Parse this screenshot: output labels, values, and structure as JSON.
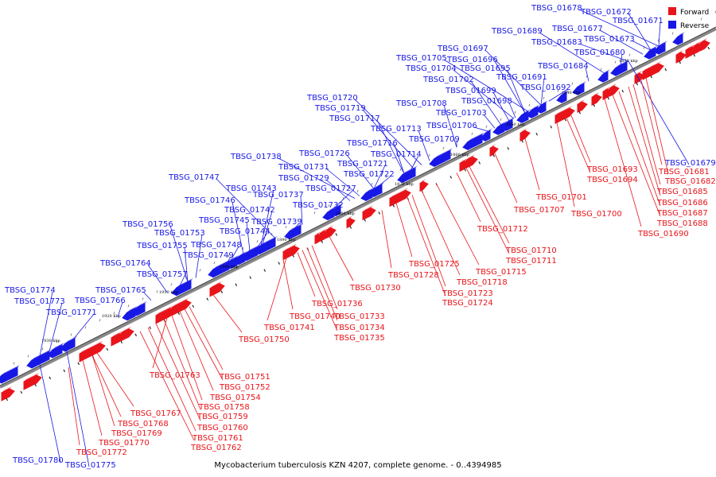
{
  "caption": "Mycobacterium tuberculosis KZN 4207, complete genome. - 0..4394985",
  "legend": [
    {
      "label": "Forward",
      "color": "#e8141a"
    },
    {
      "label": "Reverse",
      "color": "#1818e6"
    }
  ],
  "colors": {
    "forward": "#e8141a",
    "reverse": "#1818e6",
    "backbone": "#666666"
  },
  "ticks": [
    "1930 kbp",
    "1920 kbp",
    "1910 kbp",
    "1900 kbp",
    "1890 kbp",
    "1880 kbp",
    "1870 kbp",
    "1860 kbp",
    "1850 kbp",
    "1840 kbp",
    "1830 kbp"
  ],
  "reverse_labels": [
    "TBSG_01678",
    "TBSG_01672",
    "TBSG_01671",
    "TBSG_01689",
    "TBSG_01677",
    "TBSG_01683",
    "TBSG_01673",
    "TBSG_01680",
    "TBSG_01697",
    "TBSG_01705",
    "TBSG_01696",
    "TBSG_01704",
    "TBSG_01695",
    "TBSG_01684",
    "TBSG_01702",
    "TBSG_01691",
    "TBSG_01699",
    "TBSG_01692",
    "TBSG_01720",
    "TBSG_01698",
    "TBSG_01708",
    "TBSG_01719",
    "TBSG_01703",
    "TBSG_01717",
    "TBSG_01706",
    "TBSG_01713",
    "TBSG_01709",
    "TBSG_01716",
    "TBSG_01738",
    "TBSG_01726",
    "TBSG_01714",
    "TBSG_01731",
    "TBSG_01721",
    "TBSG_01729",
    "TBSG_01722",
    "TBSG_01747",
    "TBSG_01727",
    "TBSG_01743",
    "TBSG_01737",
    "TBSG_01746",
    "TBSG_01732",
    "TBSG_01742",
    "TBSG_01745",
    "TBSG_01739",
    "TBSG_01756",
    "TBSG_01744",
    "TBSG_01753",
    "TBSG_01755",
    "TBSG_01748",
    "TBSG_01749",
    "TBSG_01764",
    "TBSG_01757",
    "TBSG_01765",
    "TBSG_01774",
    "TBSG_01773",
    "TBSG_01766",
    "TBSG_01771",
    "TBSG_01679",
    "TBSG_01780",
    "TBSG_01775"
  ],
  "forward_labels": [
    "TBSG_01681",
    "TBSG_01693",
    "TBSG_01682",
    "TBSG_01694",
    "TBSG_01685",
    "TBSG_01686",
    "TBSG_01687",
    "TBSG_01701",
    "TBSG_01688",
    "TBSG_01707",
    "TBSG_01700",
    "TBSG_01690",
    "TBSG_01712",
    "TBSG_01710",
    "TBSG_01711",
    "TBSG_01725",
    "TBSG_01715",
    "TBSG_01728",
    "TBSG_01718",
    "TBSG_01723",
    "TBSG_01730",
    "TBSG_01724",
    "TBSG_01736",
    "TBSG_01740",
    "TBSG_01733",
    "TBSG_01741",
    "TBSG_01734",
    "TBSG_01750",
    "TBSG_01735",
    "TBSG_01763",
    "TBSG_01751",
    "TBSG_01752",
    "TBSG_01754",
    "TBSG_01767",
    "TBSG_01758",
    "TBSG_01768",
    "TBSG_01759",
    "TBSG_01769",
    "TBSG_01760",
    "TBSG_01770",
    "TBSG_01761",
    "TBSG_01772",
    "TBSG_01762"
  ]
}
